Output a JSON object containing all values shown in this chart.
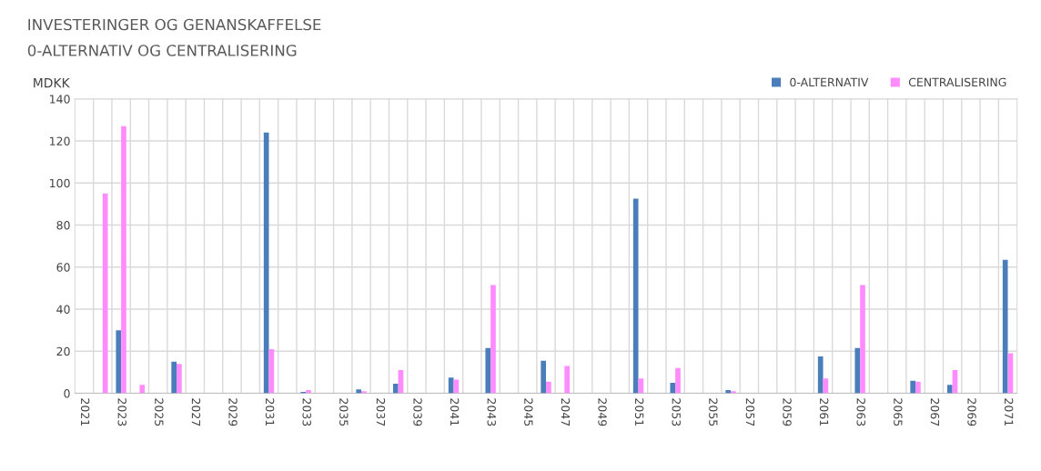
{
  "chart_data": {
    "type": "bar",
    "title": "INVESTERINGER OG GENANSKAFFELSE",
    "subtitle": "0-ALTERNATIV OG CENTRALISERING",
    "ylabel": "MDKK",
    "categories": [
      "2021",
      null,
      "2023",
      null,
      "2025",
      null,
      "2027",
      null,
      "2029",
      null,
      "2031",
      null,
      "2033",
      null,
      "2035",
      null,
      "2037",
      null,
      "2039",
      null,
      "2041",
      null,
      "2043",
      null,
      "2045",
      null,
      "2047",
      null,
      "2049",
      null,
      "2051",
      null,
      "2053",
      null,
      "2055",
      null,
      "2057",
      null,
      "2059",
      null,
      "2061",
      null,
      "2063",
      null,
      "2065",
      null,
      "2067",
      null,
      "2069",
      null,
      "2071"
    ],
    "series": [
      {
        "name": "0-ALTERNATIV",
        "color": "#4a7ebb",
        "values": [
          null,
          null,
          30,
          null,
          null,
          15,
          null,
          null,
          null,
          null,
          124,
          null,
          0.7,
          null,
          null,
          1.8,
          null,
          4.5,
          null,
          null,
          7.5,
          null,
          21.5,
          null,
          null,
          15.5,
          null,
          null,
          null,
          null,
          92.5,
          null,
          5,
          null,
          null,
          1.5,
          null,
          null,
          null,
          null,
          17.5,
          null,
          21.5,
          null,
          null,
          6,
          null,
          4,
          null,
          null,
          63.5
        ]
      },
      {
        "name": "CENTRALISERING",
        "color": "#ff8cff",
        "values": [
          null,
          95,
          127,
          4,
          null,
          14,
          null,
          null,
          null,
          null,
          21,
          null,
          1.5,
          null,
          null,
          1,
          null,
          11,
          null,
          null,
          6.5,
          null,
          51.5,
          null,
          null,
          5.5,
          13,
          null,
          null,
          null,
          7,
          null,
          12,
          null,
          null,
          1,
          null,
          null,
          null,
          null,
          7,
          null,
          51.5,
          null,
          null,
          5.5,
          null,
          11,
          null,
          null,
          19
        ]
      }
    ],
    "ylim": [
      0,
      140
    ],
    "yticks": [
      0,
      20,
      40,
      60,
      80,
      100,
      120,
      140
    ],
    "grid": true,
    "legend": "top right"
  }
}
